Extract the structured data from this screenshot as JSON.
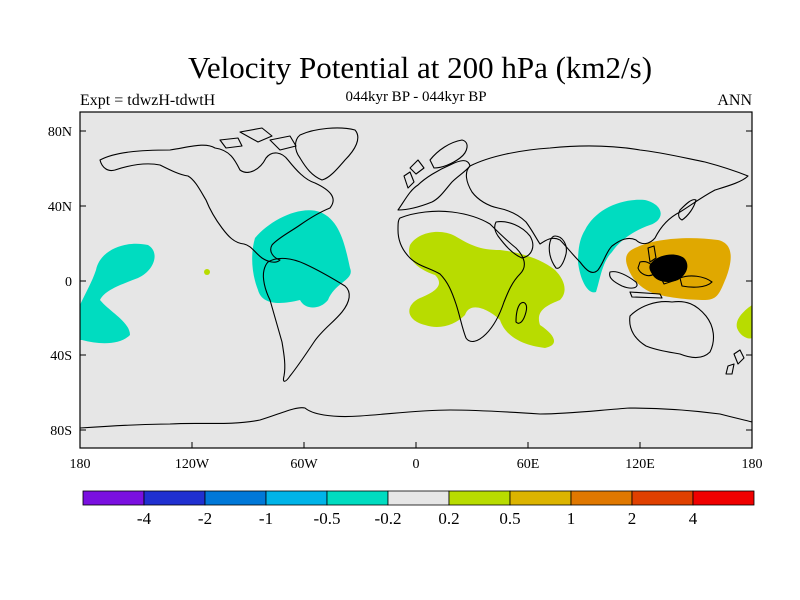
{
  "title": "Velocity Potential at 200 hPa (km2/s)",
  "subtitle": "044kyr BP - 044kyr BP",
  "left_label": "Expt = tdwzH-tdwtH",
  "right_label": "ANN",
  "map": {
    "ocean_color": "#e6e6e6",
    "y_ticks": [
      "80N",
      "40N",
      "0",
      "40S",
      "80S"
    ],
    "x_ticks": [
      "180",
      "120W",
      "60W",
      "0",
      "60E",
      "120E",
      "180"
    ]
  },
  "anomalies": [
    {
      "name": "central-pacific-negative",
      "color": "#00dcc0"
    },
    {
      "name": "south-america-negative",
      "color": "#00dcc0"
    },
    {
      "name": "asia-negative",
      "color": "#00dcc0"
    },
    {
      "name": "africa-positive",
      "color": "#b8dc00"
    },
    {
      "name": "maritime-continent-positive",
      "color": "#b8dc00"
    },
    {
      "name": "maritime-continent-strong-positive",
      "color": "#e0a800"
    }
  ],
  "colorbar": {
    "colors": [
      "#7a10e0",
      "#2030d0",
      "#0078d8",
      "#00b4e8",
      "#00dcc0",
      "#e6e6e6",
      "#b8dc00",
      "#dcb400",
      "#e07800",
      "#e04000",
      "#f00000"
    ],
    "labels": [
      "-4",
      "-2",
      "-1",
      "-0.5",
      "-0.2",
      "0.2",
      "0.5",
      "1",
      "2",
      "4"
    ]
  }
}
